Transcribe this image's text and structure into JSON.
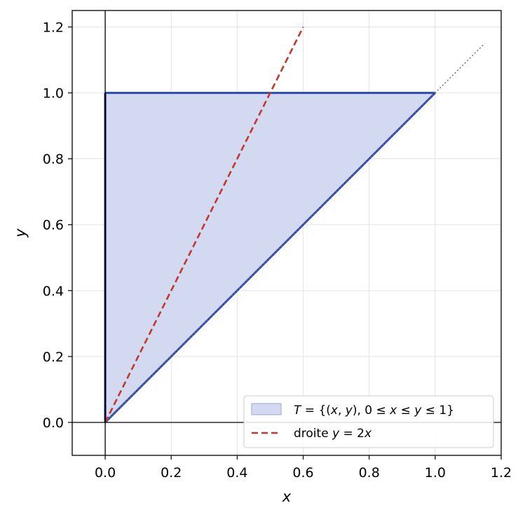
{
  "chart_data": {
    "type": "line",
    "xlabel": "x",
    "ylabel": "y",
    "xlim": [
      -0.1,
      1.2
    ],
    "ylim": [
      -0.1,
      1.25
    ],
    "xticks": [
      0.0,
      0.2,
      0.4,
      0.6,
      0.8,
      1.0,
      1.2
    ],
    "yticks": [
      0.0,
      0.2,
      0.4,
      0.6,
      0.8,
      1.0,
      1.2
    ],
    "xtick_labels": [
      "0.0",
      "0.2",
      "0.4",
      "0.6",
      "0.8",
      "1.0",
      "1.2"
    ],
    "ytick_labels": [
      "0.0",
      "0.2",
      "0.4",
      "0.6",
      "0.8",
      "1.0",
      "1.2"
    ],
    "grid": true,
    "legend_position": "bottom-right",
    "series": [
      {
        "name": "T = {(x, y),  0 ≤ x ≤ y ≤ 1}",
        "kind": "filled-polygon",
        "points": [
          [
            0,
            0
          ],
          [
            1,
            1
          ],
          [
            0,
            1
          ]
        ],
        "fill_color": "#d2d9f0",
        "edge_color": "#2d49b4"
      },
      {
        "name": "droite y = 2x",
        "kind": "dashed-line",
        "points": [
          [
            0,
            0
          ],
          [
            0.6,
            1.2
          ]
        ],
        "color": "#c0392b"
      },
      {
        "kind": "dotted-line",
        "points": [
          [
            0,
            0
          ],
          [
            1.15,
            1.15
          ]
        ],
        "color": "#6e6e6e"
      }
    ],
    "reference_lines": {
      "x_axis_at": 0,
      "y_axis_at": 0
    }
  },
  "legend": {
    "entries": [
      {
        "parts": [
          {
            "t": "T",
            "i": true
          },
          {
            "t": " = {(",
            "i": false
          },
          {
            "t": "x",
            "i": true
          },
          {
            "t": ", ",
            "i": false
          },
          {
            "t": "y",
            "i": true
          },
          {
            "t": "),  0 ≤ ",
            "i": false
          },
          {
            "t": "x",
            "i": true
          },
          {
            "t": " ≤ ",
            "i": false
          },
          {
            "t": "y",
            "i": true
          },
          {
            "t": " ≤ 1}",
            "i": false
          }
        ]
      },
      {
        "parts": [
          {
            "t": "droite ",
            "i": false
          },
          {
            "t": "y",
            "i": true
          },
          {
            "t": " = 2",
            "i": false
          },
          {
            "t": "x",
            "i": true
          }
        ]
      }
    ]
  },
  "colors": {
    "fill": "#d2d9f0",
    "edge": "#2d49b4",
    "vertical_edge": "#0c1a5c",
    "dashed": "#c0392b",
    "dotted": "#6e6e6e",
    "grid": "#e3e3e3"
  }
}
